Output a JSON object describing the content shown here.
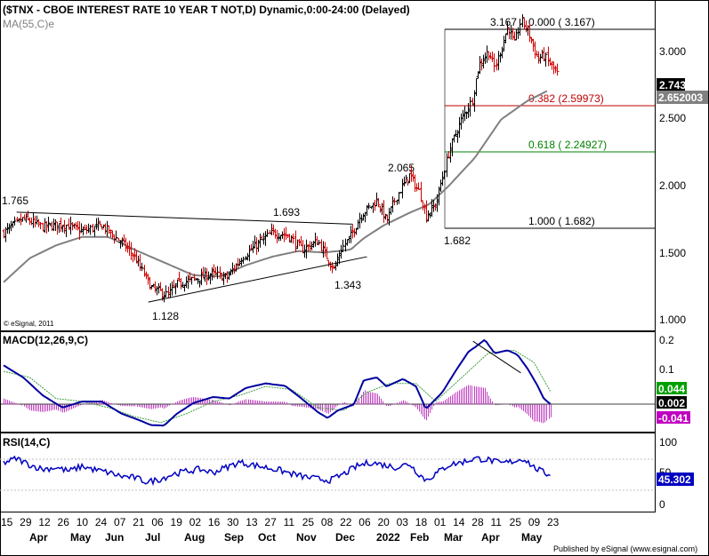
{
  "header": {
    "title": "($TNX - CBOE INTEREST RATE 10 YEAR T NOT,D) Dynamic,0:00-24:00 (Delayed)",
    "ma_label": "MA(55,C)e",
    "copyright": "© eSignal, 2011",
    "footer": "Published by eSignal (www.esignal.com)"
  },
  "colors": {
    "up_bar": "#000000",
    "down_bar": "#d00000",
    "ma_line": "#808080",
    "fib_red": "#c00000",
    "fib_green": "#008000",
    "macd_line": "#0000a0",
    "signal_line": "#40a040",
    "histogram": "#c040c0",
    "rsi_line": "#0000c0",
    "tag_dark": "#000000",
    "tag_gray": "#808080",
    "tag_green": "#00a000",
    "tag_magenta": "#c000c0",
    "tag_blue": "#0000c0"
  },
  "chart_data": [
    {
      "type": "candlestick",
      "title": "($TNX - CBOE INTEREST RATE 10 YEAR T NOT,D) Dynamic,0:00-24:00 (Delayed)",
      "ylim": [
        0.93,
        3.25
      ],
      "yticks": [
        "1.000",
        "1.500",
        "2.000",
        "2.500",
        "3.000"
      ],
      "last_value": "2.743",
      "ma_value": "2.652003",
      "fib_levels": [
        {
          "label": "0.000 ( 3.167)",
          "value": 3.167
        },
        {
          "label": "0.382 (2.59973)",
          "value": 2.59973
        },
        {
          "label": "0.618 ( 2.24927)",
          "value": 2.24927
        },
        {
          "label": "1.000 ( 1.682)",
          "value": 1.682
        }
      ],
      "annotations": [
        "1.765",
        "1.693",
        "1.128",
        "1.343",
        "2.065",
        "1.682",
        "3.167"
      ],
      "trendlines": [
        {
          "from": [
            0.02,
            1.765
          ],
          "to": [
            0.533,
            1.68
          ]
        },
        {
          "from": [
            0.221,
            1.13
          ],
          "to": [
            0.555,
            1.45
          ]
        }
      ],
      "close_anchors": [
        [
          0,
          1.62
        ],
        [
          0.03,
          1.72
        ],
        [
          0.06,
          1.66
        ],
        [
          0.09,
          1.68
        ],
        [
          0.12,
          1.63
        ],
        [
          0.15,
          1.67
        ],
        [
          0.18,
          1.55
        ],
        [
          0.2,
          1.45
        ],
        [
          0.225,
          1.23
        ],
        [
          0.25,
          1.18
        ],
        [
          0.265,
          1.26
        ],
        [
          0.29,
          1.29
        ],
        [
          0.32,
          1.33
        ],
        [
          0.34,
          1.3
        ],
        [
          0.365,
          1.45
        ],
        [
          0.39,
          1.55
        ],
        [
          0.41,
          1.62
        ],
        [
          0.435,
          1.6
        ],
        [
          0.455,
          1.5
        ],
        [
          0.48,
          1.56
        ],
        [
          0.49,
          1.47
        ],
        [
          0.505,
          1.36
        ],
        [
          0.515,
          1.5
        ],
        [
          0.53,
          1.6
        ],
        [
          0.545,
          1.74
        ],
        [
          0.57,
          1.85
        ],
        [
          0.585,
          1.7
        ],
        [
          0.6,
          1.88
        ],
        [
          0.62,
          2.03
        ],
        [
          0.635,
          1.9
        ],
        [
          0.645,
          1.74
        ],
        [
          0.66,
          1.82
        ],
        [
          0.68,
          2.2
        ],
        [
          0.7,
          2.43
        ],
        [
          0.715,
          2.55
        ],
        [
          0.725,
          2.8
        ],
        [
          0.74,
          2.9
        ],
        [
          0.75,
          2.78
        ],
        [
          0.77,
          3.08
        ],
        [
          0.78,
          2.95
        ],
        [
          0.79,
          3.12
        ],
        [
          0.8,
          3.05
        ],
        [
          0.815,
          2.85
        ],
        [
          0.825,
          2.87
        ],
        [
          0.845,
          2.74
        ]
      ],
      "ma_anchors": [
        [
          0,
          1.27
        ],
        [
          0.04,
          1.44
        ],
        [
          0.08,
          1.53
        ],
        [
          0.12,
          1.59
        ],
        [
          0.16,
          1.59
        ],
        [
          0.2,
          1.5
        ],
        [
          0.25,
          1.4
        ],
        [
          0.29,
          1.32
        ],
        [
          0.33,
          1.31
        ],
        [
          0.37,
          1.39
        ],
        [
          0.41,
          1.45
        ],
        [
          0.45,
          1.49
        ],
        [
          0.49,
          1.48
        ],
        [
          0.53,
          1.5
        ],
        [
          0.55,
          1.58
        ],
        [
          0.58,
          1.67
        ],
        [
          0.62,
          1.76
        ],
        [
          0.65,
          1.82
        ],
        [
          0.68,
          1.95
        ],
        [
          0.72,
          2.15
        ],
        [
          0.76,
          2.42
        ],
        [
          0.8,
          2.55
        ],
        [
          0.83,
          2.62
        ]
      ]
    },
    {
      "type": "line",
      "title": "MACD(12,26,9,C)",
      "ylim": [
        -0.09,
        0.24
      ],
      "yticks": [
        "0.1",
        "0.2"
      ],
      "values_tags": [
        "0.044",
        "0.002",
        "-0.041"
      ],
      "macd_anchors": [
        [
          0,
          0.13
        ],
        [
          0.03,
          0.09
        ],
        [
          0.06,
          0.03
        ],
        [
          0.09,
          -0.01
        ],
        [
          0.12,
          0.01
        ],
        [
          0.15,
          0.01
        ],
        [
          0.18,
          -0.03
        ],
        [
          0.205,
          -0.05
        ],
        [
          0.225,
          -0.068
        ],
        [
          0.245,
          -0.07
        ],
        [
          0.265,
          -0.03
        ],
        [
          0.29,
          0.005
        ],
        [
          0.32,
          0.025
        ],
        [
          0.345,
          0.02
        ],
        [
          0.37,
          0.055
        ],
        [
          0.4,
          0.07
        ],
        [
          0.43,
          0.062
        ],
        [
          0.455,
          0.02
        ],
        [
          0.48,
          -0.025
        ],
        [
          0.495,
          -0.045
        ],
        [
          0.51,
          -0.02
        ],
        [
          0.535,
          0.0
        ],
        [
          0.55,
          0.08
        ],
        [
          0.57,
          0.09
        ],
        [
          0.585,
          0.06
        ],
        [
          0.61,
          0.085
        ],
        [
          0.63,
          0.06
        ],
        [
          0.645,
          -0.015
        ],
        [
          0.67,
          0.04
        ],
        [
          0.69,
          0.11
        ],
        [
          0.71,
          0.175
        ],
        [
          0.72,
          0.19
        ],
        [
          0.735,
          0.215
        ],
        [
          0.75,
          0.17
        ],
        [
          0.77,
          0.18
        ],
        [
          0.785,
          0.165
        ],
        [
          0.8,
          0.12
        ],
        [
          0.815,
          0.065
        ],
        [
          0.825,
          0.02
        ],
        [
          0.835,
          0.002
        ]
      ],
      "signal_anchors": [
        [
          0,
          0.11
        ],
        [
          0.04,
          0.09
        ],
        [
          0.08,
          0.02
        ],
        [
          0.12,
          0.01
        ],
        [
          0.16,
          -0.01
        ],
        [
          0.2,
          -0.04
        ],
        [
          0.24,
          -0.06
        ],
        [
          0.28,
          -0.03
        ],
        [
          0.32,
          0.01
        ],
        [
          0.36,
          0.03
        ],
        [
          0.4,
          0.06
        ],
        [
          0.44,
          0.05
        ],
        [
          0.48,
          -0.01
        ],
        [
          0.52,
          -0.02
        ],
        [
          0.555,
          0.04
        ],
        [
          0.59,
          0.07
        ],
        [
          0.63,
          0.07
        ],
        [
          0.66,
          0.01
        ],
        [
          0.7,
          0.09
        ],
        [
          0.74,
          0.17
        ],
        [
          0.78,
          0.18
        ],
        [
          0.81,
          0.14
        ],
        [
          0.835,
          0.044
        ]
      ],
      "trendline": {
        "from": [
          0.717,
          0.21
        ],
        "to": [
          0.79,
          0.105
        ]
      }
    },
    {
      "type": "line",
      "title": "RSI(14,C)",
      "ylim": [
        0,
        100
      ],
      "yticks": [
        "0",
        "50",
        "100"
      ],
      "last_value": "45.302",
      "rsi_anchors": [
        [
          0,
          65
        ],
        [
          0.02,
          72
        ],
        [
          0.04,
          62
        ],
        [
          0.06,
          55
        ],
        [
          0.08,
          58
        ],
        [
          0.1,
          52
        ],
        [
          0.12,
          60
        ],
        [
          0.14,
          54
        ],
        [
          0.16,
          50
        ],
        [
          0.18,
          44
        ],
        [
          0.2,
          42
        ],
        [
          0.22,
          35
        ],
        [
          0.24,
          40
        ],
        [
          0.26,
          48
        ],
        [
          0.28,
          52
        ],
        [
          0.3,
          55
        ],
        [
          0.32,
          50
        ],
        [
          0.34,
          58
        ],
        [
          0.36,
          66
        ],
        [
          0.38,
          62
        ],
        [
          0.4,
          58
        ],
        [
          0.42,
          54
        ],
        [
          0.44,
          48
        ],
        [
          0.46,
          43
        ],
        [
          0.48,
          40
        ],
        [
          0.5,
          38
        ],
        [
          0.52,
          48
        ],
        [
          0.54,
          60
        ],
        [
          0.56,
          66
        ],
        [
          0.58,
          62
        ],
        [
          0.6,
          58
        ],
        [
          0.62,
          64
        ],
        [
          0.63,
          52
        ],
        [
          0.645,
          38
        ],
        [
          0.66,
          48
        ],
        [
          0.68,
          62
        ],
        [
          0.7,
          66
        ],
        [
          0.72,
          72
        ],
        [
          0.74,
          70
        ],
        [
          0.76,
          64
        ],
        [
          0.78,
          68
        ],
        [
          0.795,
          72
        ],
        [
          0.81,
          58
        ],
        [
          0.825,
          50
        ],
        [
          0.835,
          45.3
        ]
      ]
    }
  ],
  "x_axis": {
    "day_labels": [
      "15",
      "29",
      "12",
      "26",
      "10",
      "24",
      "07",
      "21",
      "06",
      "19",
      "02",
      "16",
      "30",
      "13",
      "27",
      "11",
      "25",
      "08",
      "22",
      "06",
      "20",
      "03",
      "18",
      "01",
      "14",
      "28",
      "11",
      "25",
      "09",
      "23"
    ],
    "month_labels": [
      "Apr",
      "May",
      "Jun",
      "Jul",
      "Aug",
      "Sep",
      "Oct",
      "Nov",
      "Dec",
      "2022",
      "Feb",
      "Mar",
      "Apr",
      "May"
    ]
  }
}
